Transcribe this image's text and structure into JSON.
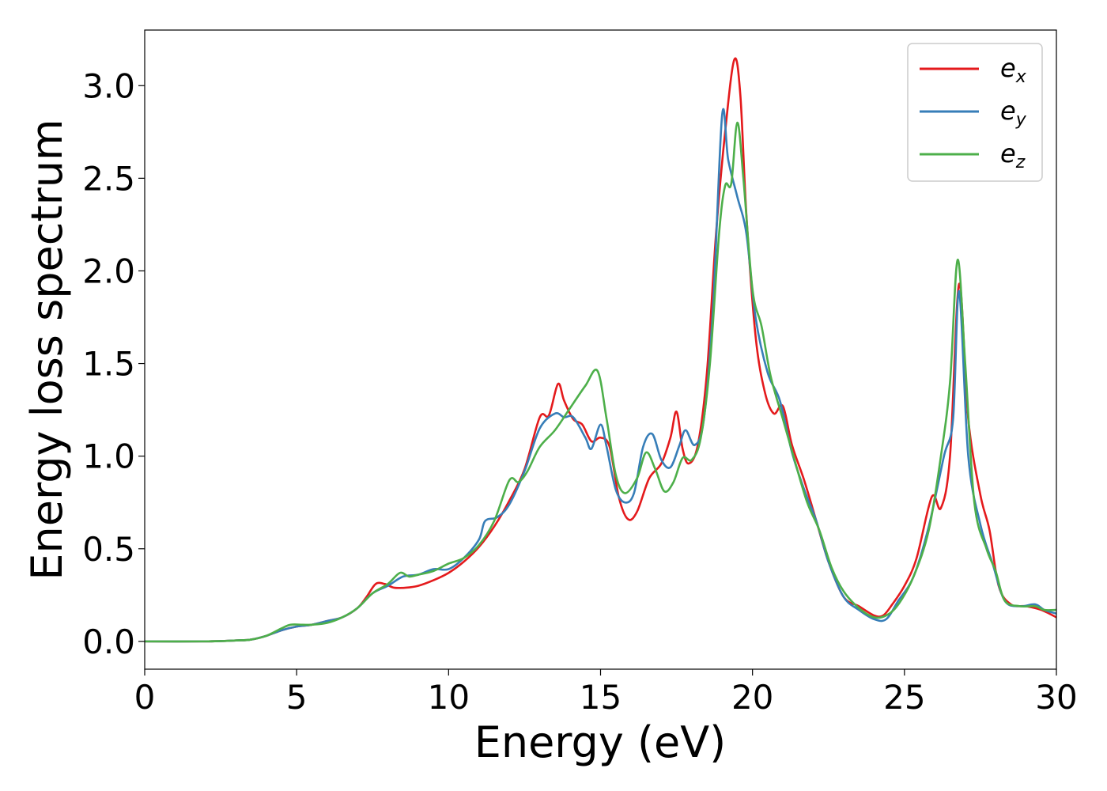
{
  "chart_data": {
    "type": "line",
    "xlabel": "Energy (eV)",
    "ylabel": "Energy loss spectrum",
    "xlim": [
      0,
      30
    ],
    "ylim": [
      -0.15,
      3.3
    ],
    "xticks": [
      "0",
      "5",
      "10",
      "15",
      "20",
      "25",
      "30"
    ],
    "yticks": [
      "0.0",
      "0.5",
      "1.0",
      "1.5",
      "2.0",
      "2.5",
      "3.0"
    ],
    "grid": false,
    "legend_position": "top-right",
    "series": [
      {
        "name": "e",
        "subscript": "x",
        "color": "#e41a1c",
        "points": [
          [
            0,
            0.0
          ],
          [
            2,
            0.0
          ],
          [
            3,
            0.005
          ],
          [
            3.5,
            0.01
          ],
          [
            4,
            0.03
          ],
          [
            4.5,
            0.06
          ],
          [
            5,
            0.08
          ],
          [
            5.5,
            0.09
          ],
          [
            6,
            0.11
          ],
          [
            6.5,
            0.13
          ],
          [
            7,
            0.18
          ],
          [
            7.3,
            0.24
          ],
          [
            7.6,
            0.31
          ],
          [
            7.9,
            0.31
          ],
          [
            8.2,
            0.29
          ],
          [
            8.6,
            0.29
          ],
          [
            9,
            0.3
          ],
          [
            9.5,
            0.33
          ],
          [
            10,
            0.37
          ],
          [
            10.5,
            0.43
          ],
          [
            11,
            0.51
          ],
          [
            11.5,
            0.62
          ],
          [
            12,
            0.76
          ],
          [
            12.5,
            0.93
          ],
          [
            13,
            1.21
          ],
          [
            13.3,
            1.22
          ],
          [
            13.6,
            1.39
          ],
          [
            13.8,
            1.3
          ],
          [
            14.1,
            1.2
          ],
          [
            14.4,
            1.17
          ],
          [
            14.7,
            1.08
          ],
          [
            15,
            1.1
          ],
          [
            15.3,
            1.05
          ],
          [
            15.6,
            0.78
          ],
          [
            15.9,
            0.66
          ],
          [
            16.2,
            0.7
          ],
          [
            16.6,
            0.88
          ],
          [
            17,
            0.96
          ],
          [
            17.3,
            1.1
          ],
          [
            17.5,
            1.24
          ],
          [
            17.7,
            1.04
          ],
          [
            17.9,
            0.96
          ],
          [
            18.2,
            1.06
          ],
          [
            18.5,
            1.45
          ],
          [
            18.8,
            2.2
          ],
          [
            19.1,
            2.75
          ],
          [
            19.4,
            3.14
          ],
          [
            19.6,
            2.95
          ],
          [
            19.8,
            2.3
          ],
          [
            20.1,
            1.65
          ],
          [
            20.4,
            1.35
          ],
          [
            20.7,
            1.23
          ],
          [
            21,
            1.27
          ],
          [
            21.3,
            1.06
          ],
          [
            21.7,
            0.87
          ],
          [
            22.1,
            0.65
          ],
          [
            22.5,
            0.43
          ],
          [
            23,
            0.24
          ],
          [
            23.5,
            0.19
          ],
          [
            24,
            0.14
          ],
          [
            24.3,
            0.14
          ],
          [
            24.6,
            0.2
          ],
          [
            25,
            0.3
          ],
          [
            25.4,
            0.45
          ],
          [
            25.9,
            0.78
          ],
          [
            26.2,
            0.72
          ],
          [
            26.5,
            1.0
          ],
          [
            26.8,
            1.93
          ],
          [
            27.1,
            1.2
          ],
          [
            27.5,
            0.79
          ],
          [
            27.8,
            0.6
          ],
          [
            28.1,
            0.3
          ],
          [
            28.5,
            0.2
          ],
          [
            29,
            0.19
          ],
          [
            29.5,
            0.17
          ],
          [
            30,
            0.13
          ]
        ]
      },
      {
        "name": "e",
        "subscript": "y",
        "color": "#377eb8",
        "points": [
          [
            0,
            0.0
          ],
          [
            2,
            0.0
          ],
          [
            3,
            0.005
          ],
          [
            3.5,
            0.01
          ],
          [
            4,
            0.03
          ],
          [
            4.5,
            0.06
          ],
          [
            5,
            0.08
          ],
          [
            5.5,
            0.09
          ],
          [
            6,
            0.11
          ],
          [
            6.5,
            0.13
          ],
          [
            7,
            0.18
          ],
          [
            7.5,
            0.26
          ],
          [
            8,
            0.3
          ],
          [
            8.5,
            0.35
          ],
          [
            9,
            0.36
          ],
          [
            9.5,
            0.39
          ],
          [
            10,
            0.39
          ],
          [
            10.5,
            0.45
          ],
          [
            11,
            0.55
          ],
          [
            11.2,
            0.65
          ],
          [
            11.6,
            0.67
          ],
          [
            12,
            0.74
          ],
          [
            12.5,
            0.92
          ],
          [
            13,
            1.15
          ],
          [
            13.5,
            1.23
          ],
          [
            13.8,
            1.21
          ],
          [
            14.1,
            1.21
          ],
          [
            14.5,
            1.1
          ],
          [
            14.7,
            1.04
          ],
          [
            15,
            1.17
          ],
          [
            15.2,
            1.05
          ],
          [
            15.5,
            0.82
          ],
          [
            15.8,
            0.75
          ],
          [
            16.1,
            0.8
          ],
          [
            16.4,
            1.05
          ],
          [
            16.7,
            1.12
          ],
          [
            17,
            0.98
          ],
          [
            17.3,
            0.94
          ],
          [
            17.6,
            1.06
          ],
          [
            17.8,
            1.14
          ],
          [
            18.1,
            1.06
          ],
          [
            18.4,
            1.2
          ],
          [
            18.7,
            1.8
          ],
          [
            19,
            2.84
          ],
          [
            19.2,
            2.6
          ],
          [
            19.5,
            2.4
          ],
          [
            19.8,
            2.2
          ],
          [
            20.1,
            1.75
          ],
          [
            20.5,
            1.45
          ],
          [
            20.9,
            1.3
          ],
          [
            21.3,
            1.02
          ],
          [
            21.7,
            0.82
          ],
          [
            22.1,
            0.65
          ],
          [
            22.5,
            0.43
          ],
          [
            23,
            0.24
          ],
          [
            23.5,
            0.17
          ],
          [
            24,
            0.12
          ],
          [
            24.4,
            0.12
          ],
          [
            24.8,
            0.22
          ],
          [
            25.3,
            0.35
          ],
          [
            25.8,
            0.62
          ],
          [
            26.3,
            1.0
          ],
          [
            26.6,
            1.2
          ],
          [
            26.8,
            1.89
          ],
          [
            27.1,
            1.0
          ],
          [
            27.5,
            0.63
          ],
          [
            27.9,
            0.42
          ],
          [
            28.3,
            0.22
          ],
          [
            28.8,
            0.19
          ],
          [
            29.3,
            0.2
          ],
          [
            29.6,
            0.17
          ],
          [
            30,
            0.15
          ]
        ]
      },
      {
        "name": "e",
        "subscript": "z",
        "color": "#4daf4a",
        "points": [
          [
            0,
            0.0
          ],
          [
            2,
            0.0
          ],
          [
            3,
            0.005
          ],
          [
            3.5,
            0.01
          ],
          [
            4,
            0.03
          ],
          [
            4.5,
            0.07
          ],
          [
            4.8,
            0.09
          ],
          [
            5.2,
            0.09
          ],
          [
            5.5,
            0.09
          ],
          [
            6,
            0.1
          ],
          [
            6.5,
            0.13
          ],
          [
            7,
            0.18
          ],
          [
            7.5,
            0.26
          ],
          [
            8,
            0.31
          ],
          [
            8.4,
            0.37
          ],
          [
            8.7,
            0.35
          ],
          [
            9,
            0.36
          ],
          [
            9.5,
            0.38
          ],
          [
            10,
            0.42
          ],
          [
            10.5,
            0.45
          ],
          [
            11,
            0.52
          ],
          [
            11.5,
            0.65
          ],
          [
            12,
            0.87
          ],
          [
            12.3,
            0.86
          ],
          [
            12.6,
            0.92
          ],
          [
            13,
            1.05
          ],
          [
            13.5,
            1.14
          ],
          [
            14,
            1.26
          ],
          [
            14.5,
            1.38
          ],
          [
            14.9,
            1.46
          ],
          [
            15.2,
            1.2
          ],
          [
            15.5,
            0.9
          ],
          [
            15.8,
            0.8
          ],
          [
            16.2,
            0.88
          ],
          [
            16.5,
            1.02
          ],
          [
            16.8,
            0.93
          ],
          [
            17.1,
            0.81
          ],
          [
            17.4,
            0.86
          ],
          [
            17.7,
            0.99
          ],
          [
            18,
            0.98
          ],
          [
            18.3,
            1.1
          ],
          [
            18.6,
            1.5
          ],
          [
            18.9,
            2.2
          ],
          [
            19.1,
            2.46
          ],
          [
            19.3,
            2.47
          ],
          [
            19.5,
            2.8
          ],
          [
            19.7,
            2.5
          ],
          [
            20,
            1.9
          ],
          [
            20.3,
            1.7
          ],
          [
            20.6,
            1.43
          ],
          [
            21,
            1.2
          ],
          [
            21.4,
            0.97
          ],
          [
            21.8,
            0.75
          ],
          [
            22.2,
            0.6
          ],
          [
            22.6,
            0.4
          ],
          [
            23,
            0.27
          ],
          [
            23.5,
            0.18
          ],
          [
            24,
            0.13
          ],
          [
            24.4,
            0.14
          ],
          [
            24.8,
            0.2
          ],
          [
            25.3,
            0.35
          ],
          [
            25.8,
            0.6
          ],
          [
            26.2,
            1.0
          ],
          [
            26.5,
            1.4
          ],
          [
            26.75,
            2.06
          ],
          [
            27,
            1.5
          ],
          [
            27.3,
            0.75
          ],
          [
            27.7,
            0.5
          ],
          [
            28,
            0.38
          ],
          [
            28.3,
            0.22
          ],
          [
            28.8,
            0.19
          ],
          [
            29.3,
            0.19
          ],
          [
            29.6,
            0.17
          ],
          [
            30,
            0.17
          ]
        ]
      }
    ]
  }
}
